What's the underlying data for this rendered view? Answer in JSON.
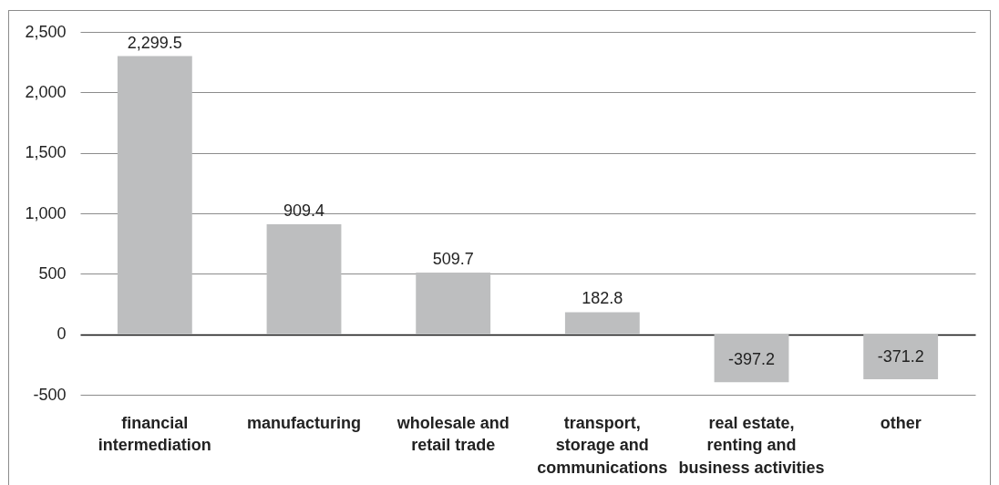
{
  "chart_data": {
    "type": "bar",
    "categories": [
      "financial intermediation",
      "manufacturing",
      "wholesale and retail trade",
      "transport, storage and communications",
      "real estate, renting and business activities",
      "other"
    ],
    "values": [
      2299.5,
      909.4,
      509.7,
      182.8,
      -397.2,
      -371.2
    ],
    "value_labels": [
      "2,299.5",
      "909.4",
      "509.7",
      "182.8",
      "-397.2",
      "-371.2"
    ],
    "color": "#bdbebf",
    "ylim": [
      -500,
      2500
    ],
    "yticks": [
      -500,
      0,
      500,
      {
        "value": 1000,
        "label": "1,000"
      },
      {
        "value": 1500,
        "label": "1,500"
      },
      {
        "value": 2000,
        "label": "2,000"
      },
      {
        "value": 2500,
        "label": "2,500"
      }
    ],
    "grid": "y"
  }
}
